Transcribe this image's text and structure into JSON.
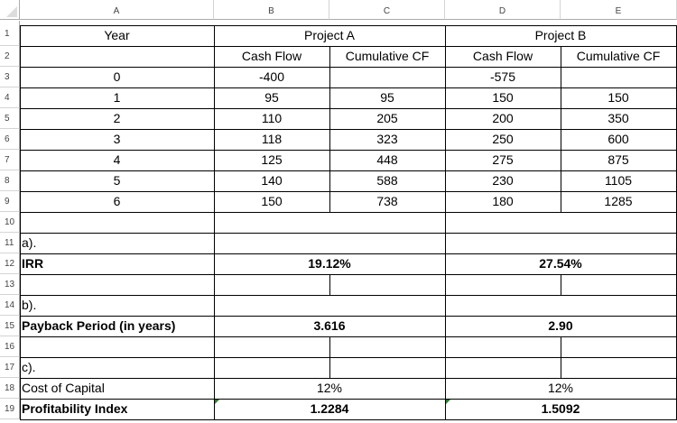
{
  "columns": [
    "A",
    "B",
    "C",
    "D",
    "E"
  ],
  "rows": [
    "1",
    "2",
    "3",
    "4",
    "5",
    "6",
    "7",
    "8",
    "9",
    "10",
    "11",
    "12",
    "13",
    "14",
    "15",
    "16",
    "17",
    "18",
    "19"
  ],
  "headers": {
    "year": "Year",
    "project_a": "Project A",
    "project_b": "Project B",
    "cash_flow": "Cash Flow",
    "cumulative_cf": "Cumulative CF"
  },
  "table": [
    {
      "year": "0",
      "a_cf": "-400",
      "a_cum": "",
      "b_cf": "-575",
      "b_cum": ""
    },
    {
      "year": "1",
      "a_cf": "95",
      "a_cum": "95",
      "b_cf": "150",
      "b_cum": "150"
    },
    {
      "year": "2",
      "a_cf": "110",
      "a_cum": "205",
      "b_cf": "200",
      "b_cum": "350"
    },
    {
      "year": "3",
      "a_cf": "118",
      "a_cum": "323",
      "b_cf": "250",
      "b_cum": "600"
    },
    {
      "year": "4",
      "a_cf": "125",
      "a_cum": "448",
      "b_cf": "275",
      "b_cum": "875"
    },
    {
      "year": "5",
      "a_cf": "140",
      "a_cum": "588",
      "b_cf": "230",
      "b_cum": "1105"
    },
    {
      "year": "6",
      "a_cf": "150",
      "a_cum": "738",
      "b_cf": "180",
      "b_cum": "1285"
    }
  ],
  "irr": {
    "part": "a).",
    "label": "IRR",
    "a": "19.12%",
    "b": "27.54%"
  },
  "payback": {
    "part": "b).",
    "label": "Payback Period (in years)",
    "a": "3.616",
    "b": "2.90"
  },
  "pi": {
    "part": "c).",
    "coc_label": "Cost of Capital",
    "coc_a": "12%",
    "coc_b": "12%",
    "label": "Profitability Index",
    "a": "1.2284",
    "b": "1.5092"
  }
}
